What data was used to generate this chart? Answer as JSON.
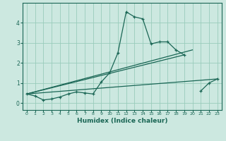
{
  "title": "",
  "xlabel": "Humidex (Indice chaleur)",
  "x_values": [
    0,
    1,
    2,
    3,
    4,
    5,
    6,
    7,
    8,
    9,
    10,
    11,
    12,
    13,
    14,
    15,
    16,
    17,
    18,
    19,
    20,
    21,
    22,
    23
  ],
  "curve_data": [
    0.45,
    0.35,
    0.15,
    0.2,
    0.3,
    0.45,
    0.55,
    0.5,
    0.45,
    1.05,
    1.5,
    2.5,
    4.55,
    4.3,
    4.2,
    2.95,
    3.05,
    3.05,
    2.65,
    2.4,
    null,
    0.6,
    1.0,
    1.2
  ],
  "background_color": "#cce8e0",
  "grid_color": "#99ccbb",
  "line_color": "#1a6655",
  "xlim": [
    -0.5,
    23.5
  ],
  "ylim": [
    -0.35,
    5.0
  ],
  "yticks": [
    0,
    1,
    2,
    3,
    4
  ],
  "xticks": [
    0,
    1,
    2,
    3,
    4,
    5,
    6,
    7,
    8,
    9,
    10,
    11,
    12,
    13,
    14,
    15,
    16,
    17,
    18,
    19,
    20,
    21,
    22,
    23
  ],
  "straight_line1_x": [
    0,
    23
  ],
  "straight_line1_y": [
    0.45,
    1.2
  ],
  "straight_line2_x": [
    0,
    20
  ],
  "straight_line2_y": [
    0.45,
    2.65
  ],
  "straight_line3_x": [
    0,
    19
  ],
  "straight_line3_y": [
    0.45,
    2.4
  ]
}
